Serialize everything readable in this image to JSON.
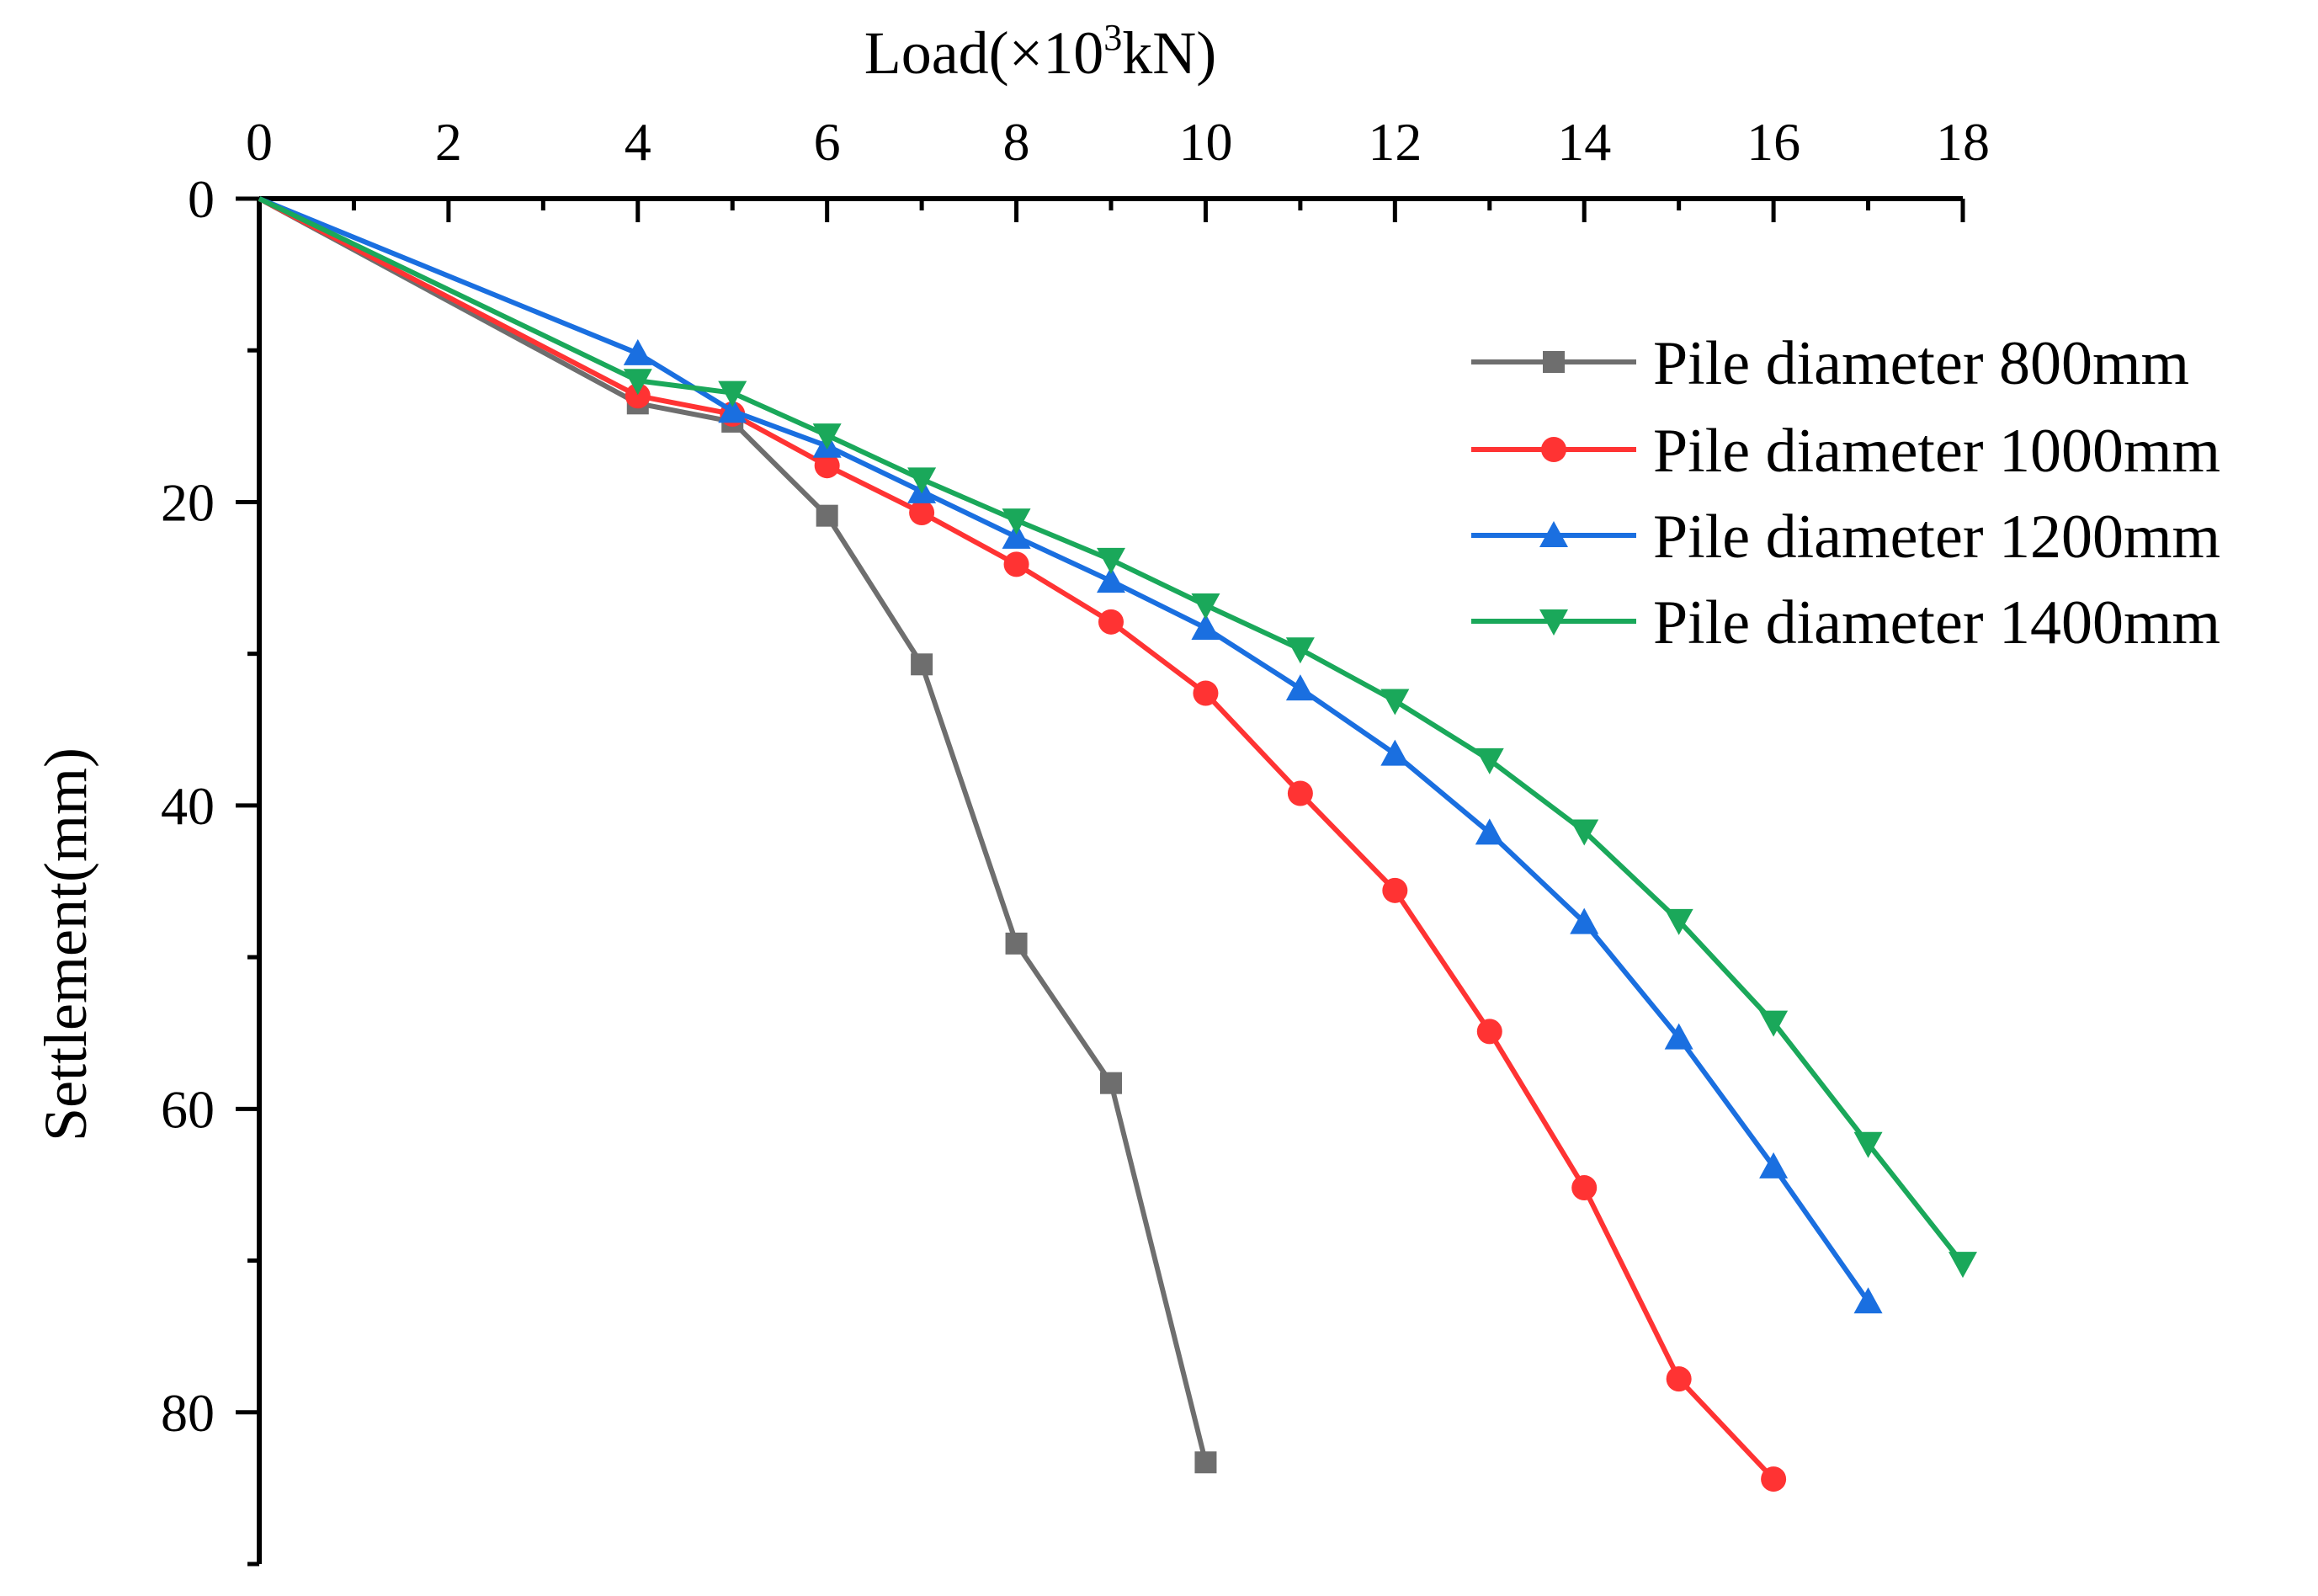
{
  "chart_data": {
    "type": "line",
    "title": "",
    "xlabel": {
      "prefix": "Load(×10",
      "sup": "3",
      "suffix": "kN)"
    },
    "ylabel": "Settlement(mm)",
    "xlim": [
      0,
      18
    ],
    "ylim": [
      0,
      90
    ],
    "y_inverted": true,
    "x_axis_position": "top",
    "x_ticks": [
      "0",
      "2",
      "4",
      "6",
      "8",
      "10",
      "12",
      "14",
      "16",
      "18"
    ],
    "y_ticks": [
      "0",
      "20",
      "40",
      "60",
      "80"
    ],
    "grid": false,
    "legend_position": "top-right",
    "series": [
      {
        "name": "Pile diameter 800mm",
        "color": "#6e6e6e",
        "marker": "square",
        "x": [
          0,
          4,
          5,
          6,
          7,
          8,
          9,
          10
        ],
        "y": [
          0,
          13.5,
          14.7,
          20.9,
          30.7,
          49.1,
          58.3,
          83.3
        ]
      },
      {
        "name": "Pile diameter 1000mm",
        "color": "#ff3333",
        "marker": "circle",
        "x": [
          0,
          4,
          5,
          6,
          7,
          8,
          9,
          10,
          11,
          12,
          13,
          14,
          15,
          16
        ],
        "y": [
          0,
          13.0,
          14.2,
          17.6,
          20.7,
          24.1,
          27.9,
          32.6,
          39.2,
          45.6,
          54.9,
          65.2,
          77.8,
          84.4
        ]
      },
      {
        "name": "Pile diameter 1200mm",
        "color": "#1a6fe0",
        "marker": "triangle-up",
        "x": [
          0,
          4,
          5,
          6,
          7,
          8,
          9,
          10,
          11,
          12,
          13,
          14,
          15,
          16,
          17
        ],
        "y": [
          0,
          10.2,
          14.0,
          16.3,
          19.3,
          22.3,
          25.2,
          28.3,
          32.3,
          36.6,
          41.8,
          47.7,
          55.3,
          63.8,
          72.7
        ]
      },
      {
        "name": "Pile diameter 1400mm",
        "color": "#1aa85a",
        "marker": "triangle-down",
        "x": [
          0,
          4,
          5,
          6,
          7,
          8,
          9,
          10,
          11,
          12,
          13,
          14,
          15,
          16,
          17,
          18
        ],
        "y": [
          0,
          12.0,
          12.8,
          15.6,
          18.5,
          21.2,
          23.8,
          26.8,
          29.7,
          33.1,
          37.0,
          41.7,
          47.6,
          54.3,
          62.3,
          70.2
        ]
      }
    ]
  }
}
